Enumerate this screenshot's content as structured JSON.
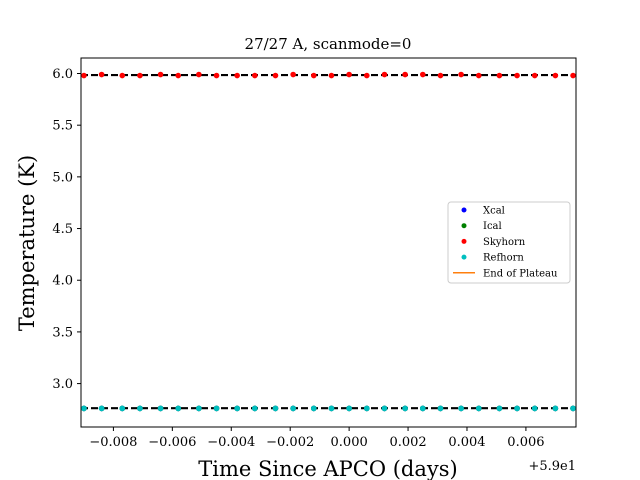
{
  "chart_data": {
    "type": "scatter",
    "title": "27/27 A, scanmode=0",
    "xlabel": "Time Since APCO (days)",
    "ylabel": "Temperature (K)",
    "x_offset_label": "+5.9e1",
    "xlim": [
      -0.0091,
      0.0077
    ],
    "ylim": [
      2.58,
      6.15
    ],
    "xticks": [
      -0.008,
      -0.006,
      -0.004,
      -0.002,
      0.0,
      0.002,
      0.004,
      0.006
    ],
    "xtick_labels": [
      "−0.008",
      "−0.006",
      "−0.004",
      "−0.002",
      "0.000",
      "0.002",
      "0.004",
      "0.006"
    ],
    "yticks": [
      3.0,
      3.5,
      4.0,
      4.5,
      5.0,
      5.5,
      6.0
    ],
    "ytick_labels": [
      "3.0",
      "3.5",
      "4.0",
      "4.5",
      "5.0",
      "5.5",
      "6.0"
    ],
    "x": [
      -0.009,
      -0.0084,
      -0.0077,
      -0.0071,
      -0.0064,
      -0.0058,
      -0.0051,
      -0.0045,
      -0.0038,
      -0.0032,
      -0.0025,
      -0.0019,
      -0.0012,
      -0.0006,
      0.0,
      0.0006,
      0.0012,
      0.0019,
      0.0025,
      0.0031,
      0.0038,
      0.0044,
      0.0051,
      0.0057,
      0.0063,
      0.007,
      0.0076
    ],
    "series": [
      {
        "name": "Xcal",
        "color": "#0000ff",
        "values": [
          2.76,
          2.76,
          2.76,
          2.76,
          2.76,
          2.76,
          2.76,
          2.76,
          2.76,
          2.76,
          2.76,
          2.76,
          2.76,
          2.76,
          2.76,
          2.76,
          2.76,
          2.76,
          2.76,
          2.76,
          2.76,
          2.76,
          2.76,
          2.76,
          2.76,
          2.76,
          2.76
        ]
      },
      {
        "name": "Ical",
        "color": "#008000",
        "values": [
          2.76,
          2.76,
          2.76,
          2.76,
          2.76,
          2.76,
          2.76,
          2.76,
          2.76,
          2.76,
          2.76,
          2.76,
          2.76,
          2.76,
          2.76,
          2.76,
          2.76,
          2.76,
          2.76,
          2.76,
          2.76,
          2.76,
          2.76,
          2.76,
          2.76,
          2.76,
          2.76
        ]
      },
      {
        "name": "Skyhorn",
        "color": "#ff0000",
        "values": [
          5.98,
          5.99,
          5.98,
          5.98,
          5.99,
          5.98,
          5.99,
          5.98,
          5.98,
          5.98,
          5.98,
          5.99,
          5.98,
          5.98,
          5.99,
          5.98,
          5.99,
          5.99,
          5.99,
          5.98,
          5.99,
          5.98,
          5.98,
          5.98,
          5.98,
          5.98,
          5.98
        ]
      },
      {
        "name": "Refhorn",
        "color": "#00bfbf",
        "values": [
          2.76,
          2.76,
          2.76,
          2.76,
          2.76,
          2.76,
          2.76,
          2.76,
          2.76,
          2.76,
          2.76,
          2.76,
          2.76,
          2.76,
          2.76,
          2.76,
          2.76,
          2.76,
          2.76,
          2.76,
          2.76,
          2.76,
          2.76,
          2.76,
          2.76,
          2.76,
          2.76
        ]
      }
    ],
    "reference_lines": [
      {
        "y": 5.985,
        "style": "dashed",
        "color": "#000000"
      },
      {
        "y": 2.762,
        "style": "dashed",
        "color": "#000000"
      }
    ],
    "legend": {
      "placement": "center-right",
      "entries": [
        {
          "label": "Xcal",
          "kind": "marker",
          "color": "#0000ff"
        },
        {
          "label": "Ical",
          "kind": "marker",
          "color": "#008000"
        },
        {
          "label": "Skyhorn",
          "kind": "marker",
          "color": "#ff0000"
        },
        {
          "label": "Refhorn",
          "kind": "marker",
          "color": "#00bfbf"
        },
        {
          "label": "End of Plateau",
          "kind": "line",
          "color": "#ff7f0e"
        }
      ]
    },
    "grid": false
  }
}
